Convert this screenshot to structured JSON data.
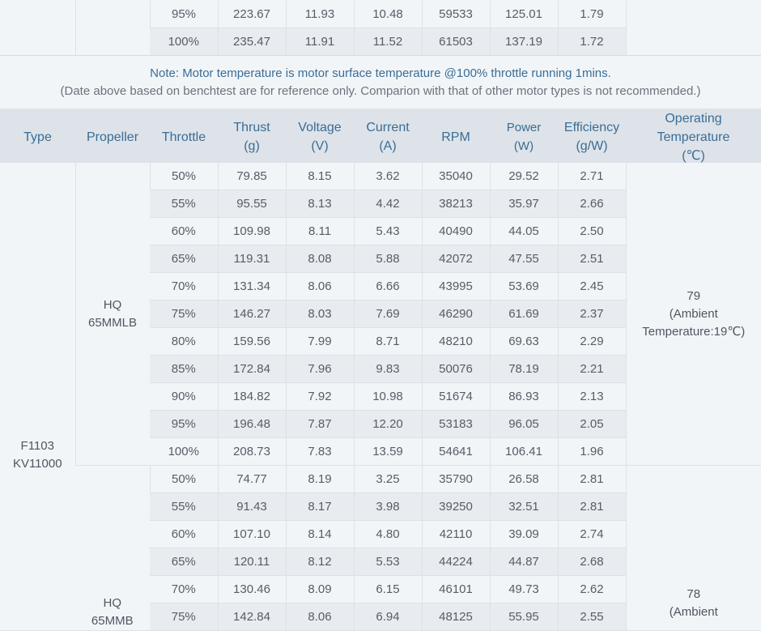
{
  "top_rows": [
    {
      "throttle": "95%",
      "thrust": "223.67",
      "voltage": "11.93",
      "current": "10.48",
      "rpm": "59533",
      "power": "125.01",
      "efficiency": "1.79"
    },
    {
      "throttle": "100%",
      "thrust": "235.47",
      "voltage": "11.91",
      "current": "11.52",
      "rpm": "61503",
      "power": "137.19",
      "efficiency": "1.72"
    }
  ],
  "note": {
    "line1": "Note: Motor temperature is motor surface temperature @100% throttle running 1mins.",
    "line2": "(Date above based on benchtest are for reference only. Comparion with that of other motor types is not recommended.)"
  },
  "headers": {
    "type": "Type",
    "propeller": "Propeller",
    "throttle": "Throttle",
    "thrust": [
      "Thrust",
      "(g)"
    ],
    "voltage": [
      "Voltage",
      "(V)"
    ],
    "current": [
      "Current",
      "(A)"
    ],
    "rpm": "RPM",
    "power": [
      "Power",
      "(W)"
    ],
    "efficiency": [
      "Efficiency",
      "(g/W)"
    ],
    "temperature": [
      "Operating",
      "Temperature",
      "(℃)"
    ]
  },
  "motor": {
    "type_line1": "F1103",
    "type_line2": "KV11000"
  },
  "groups": [
    {
      "propeller_line1": "HQ",
      "propeller_line2": "65MMLB",
      "temp_value": "79",
      "temp_note_line1": "(Ambient",
      "temp_note_line2": "Temperature:19℃)",
      "rows": [
        {
          "throttle": "50%",
          "thrust": "79.85",
          "voltage": "8.15",
          "current": "3.62",
          "rpm": "35040",
          "power": "29.52",
          "efficiency": "2.71"
        },
        {
          "throttle": "55%",
          "thrust": "95.55",
          "voltage": "8.13",
          "current": "4.42",
          "rpm": "38213",
          "power": "35.97",
          "efficiency": "2.66"
        },
        {
          "throttle": "60%",
          "thrust": "109.98",
          "voltage": "8.11",
          "current": "5.43",
          "rpm": "40490",
          "power": "44.05",
          "efficiency": "2.50"
        },
        {
          "throttle": "65%",
          "thrust": "119.31",
          "voltage": "8.08",
          "current": "5.88",
          "rpm": "42072",
          "power": "47.55",
          "efficiency": "2.51"
        },
        {
          "throttle": "70%",
          "thrust": "131.34",
          "voltage": "8.06",
          "current": "6.66",
          "rpm": "43995",
          "power": "53.69",
          "efficiency": "2.45"
        },
        {
          "throttle": "75%",
          "thrust": "146.27",
          "voltage": "8.03",
          "current": "7.69",
          "rpm": "46290",
          "power": "61.69",
          "efficiency": "2.37"
        },
        {
          "throttle": "80%",
          "thrust": "159.56",
          "voltage": "7.99",
          "current": "8.71",
          "rpm": "48210",
          "power": "69.63",
          "efficiency": "2.29"
        },
        {
          "throttle": "85%",
          "thrust": "172.84",
          "voltage": "7.96",
          "current": "9.83",
          "rpm": "50076",
          "power": "78.19",
          "efficiency": "2.21"
        },
        {
          "throttle": "90%",
          "thrust": "184.82",
          "voltage": "7.92",
          "current": "10.98",
          "rpm": "51674",
          "power": "86.93",
          "efficiency": "2.13"
        },
        {
          "throttle": "95%",
          "thrust": "196.48",
          "voltage": "7.87",
          "current": "12.20",
          "rpm": "53183",
          "power": "96.05",
          "efficiency": "2.05"
        },
        {
          "throttle": "100%",
          "thrust": "208.73",
          "voltage": "7.83",
          "current": "13.59",
          "rpm": "54641",
          "power": "106.41",
          "efficiency": "1.96"
        }
      ]
    },
    {
      "propeller_line1": "HQ",
      "propeller_line2": "65MMB",
      "temp_value": "78",
      "temp_note_line1": "(Ambient",
      "rows": [
        {
          "throttle": "50%",
          "thrust": "74.77",
          "voltage": "8.19",
          "current": "3.25",
          "rpm": "35790",
          "power": "26.58",
          "efficiency": "2.81"
        },
        {
          "throttle": "55%",
          "thrust": "91.43",
          "voltage": "8.17",
          "current": "3.98",
          "rpm": "39250",
          "power": "32.51",
          "efficiency": "2.81"
        },
        {
          "throttle": "60%",
          "thrust": "107.10",
          "voltage": "8.14",
          "current": "4.80",
          "rpm": "42110",
          "power": "39.09",
          "efficiency": "2.74"
        },
        {
          "throttle": "65%",
          "thrust": "120.11",
          "voltage": "8.12",
          "current": "5.53",
          "rpm": "44224",
          "power": "44.87",
          "efficiency": "2.68"
        },
        {
          "throttle": "70%",
          "thrust": "130.46",
          "voltage": "8.09",
          "current": "6.15",
          "rpm": "46101",
          "power": "49.73",
          "efficiency": "2.62"
        },
        {
          "throttle": "75%",
          "thrust": "142.84",
          "voltage": "8.06",
          "current": "6.94",
          "rpm": "48125",
          "power": "55.95",
          "efficiency": "2.55"
        }
      ]
    }
  ]
}
